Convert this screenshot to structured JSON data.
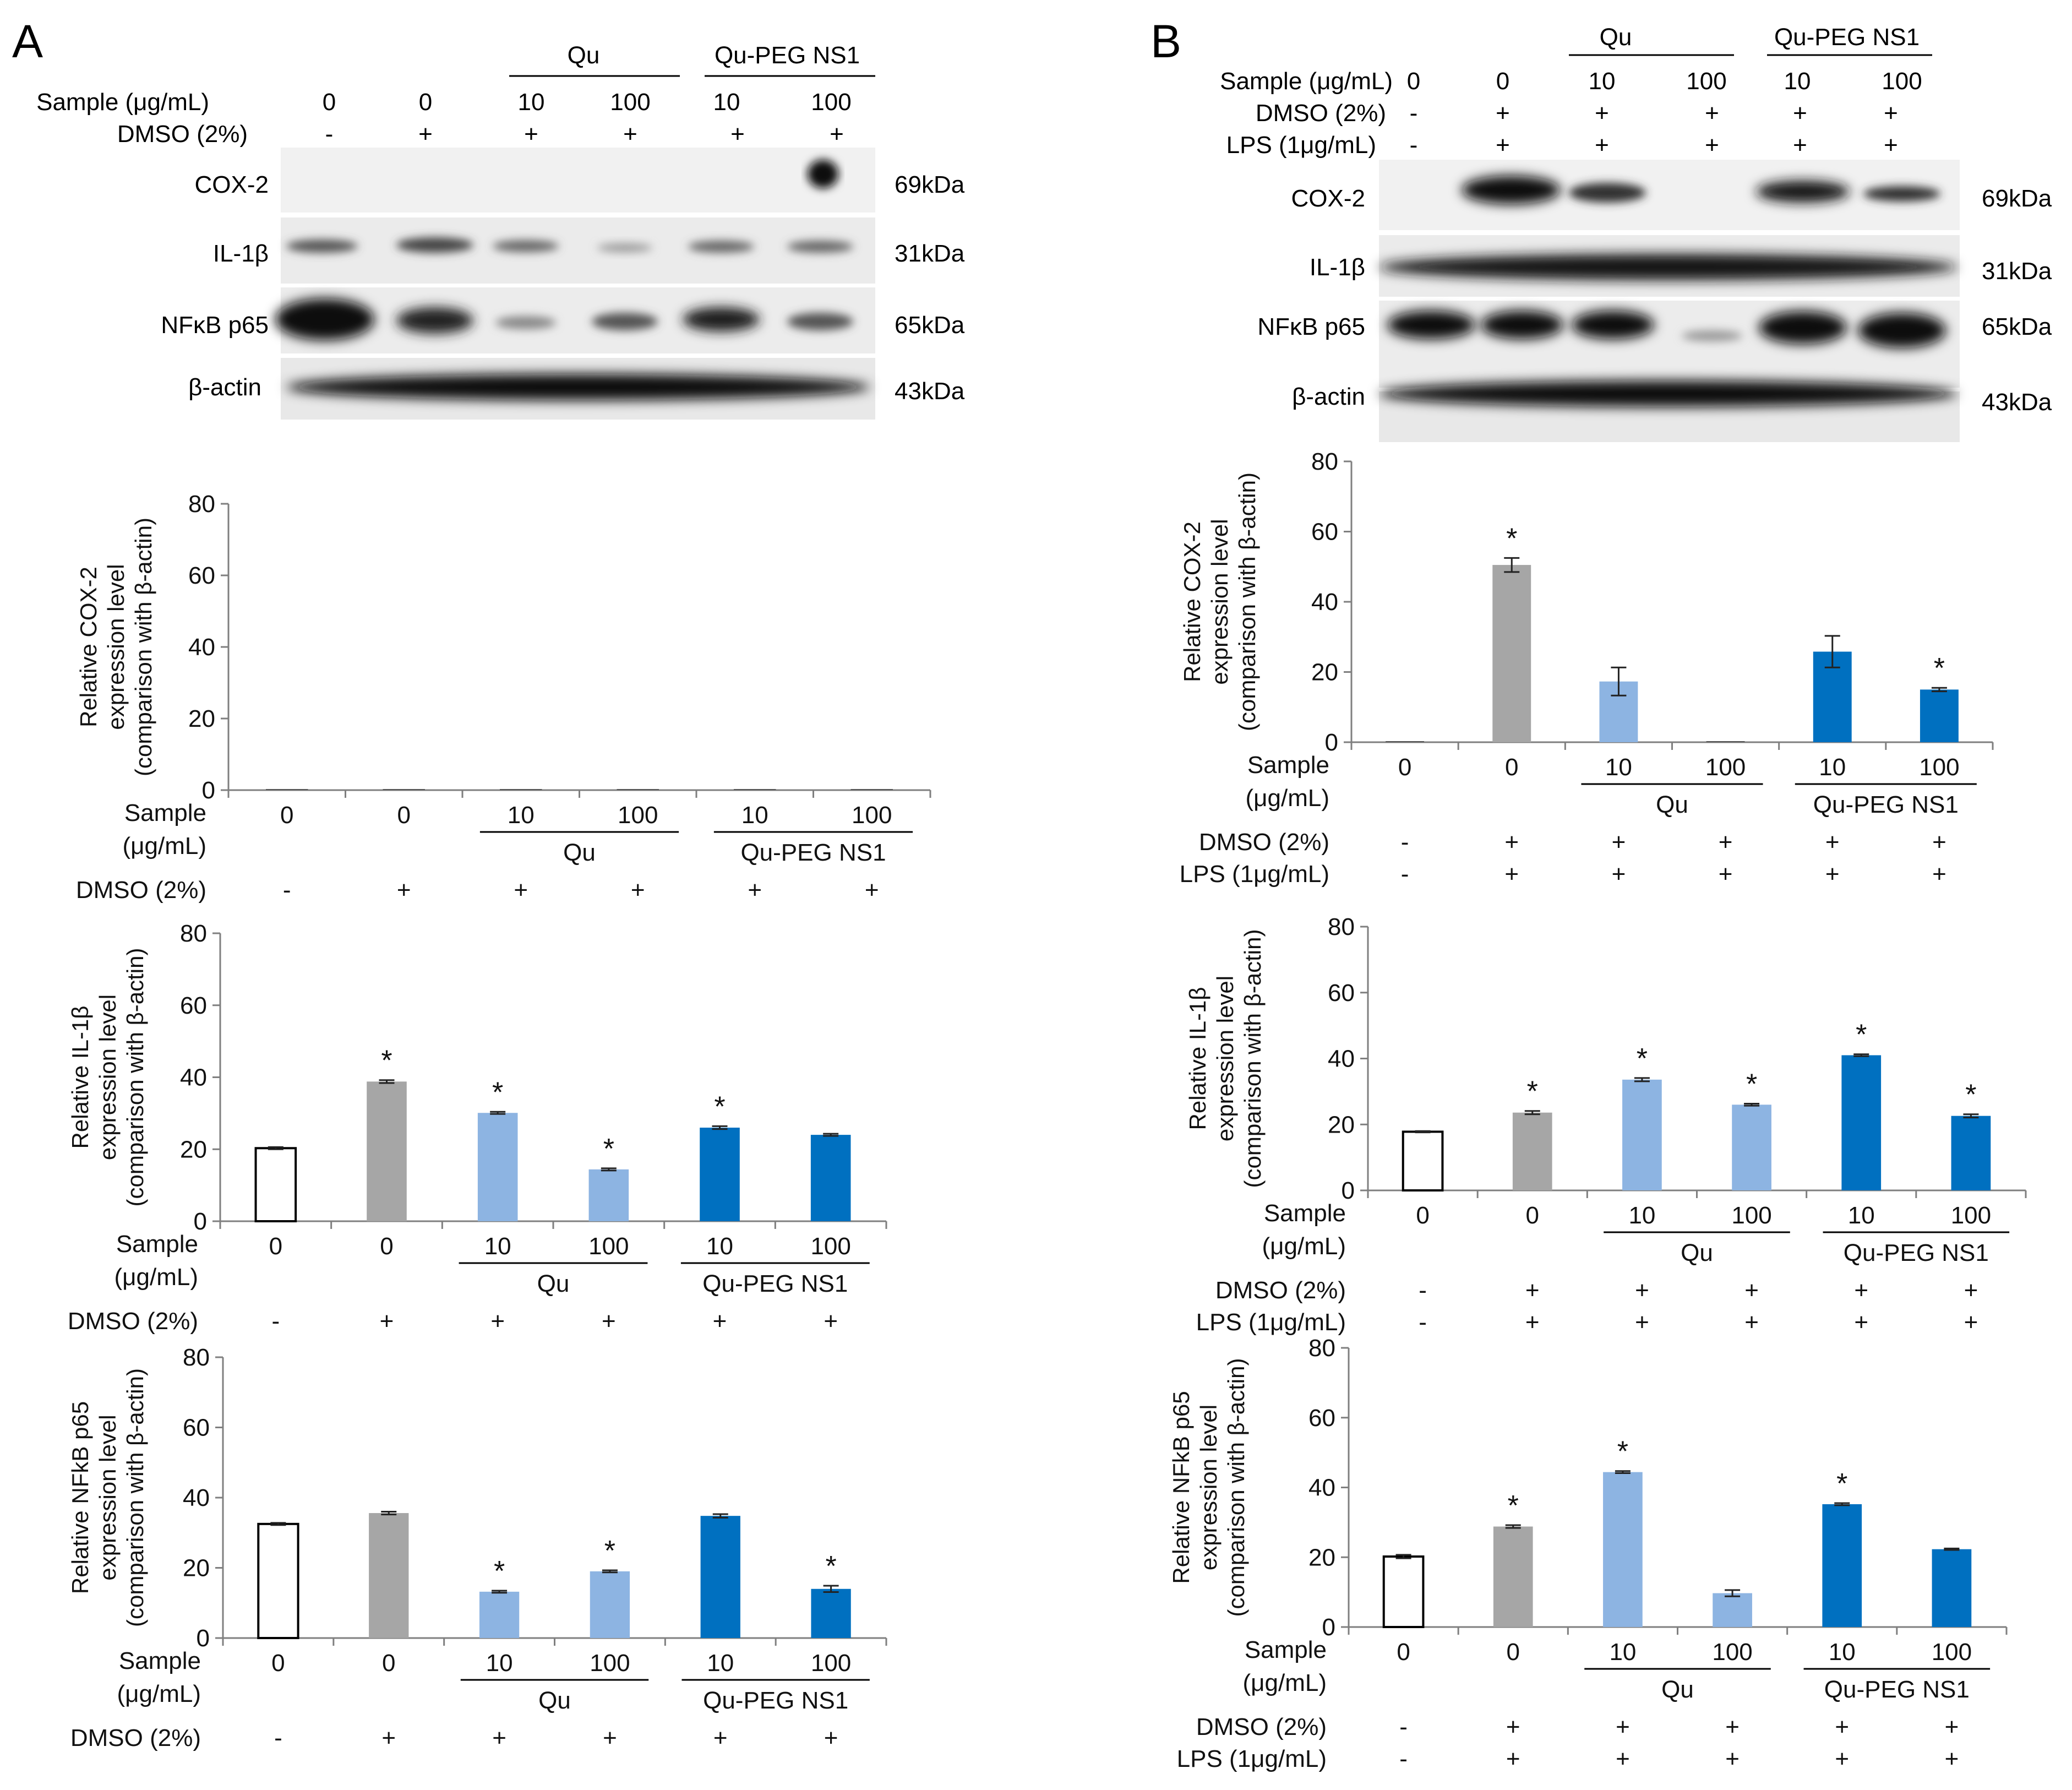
{
  "panels": [
    {
      "letter": "A",
      "header": {
        "group_labels": [
          "Qu",
          "Qu-PEG NS1"
        ],
        "rows": [
          {
            "label": "Sample (μg/mL)",
            "values": [
              "0",
              "0",
              "10",
              "100",
              "10",
              "100"
            ]
          },
          {
            "label": "DMSO (2%)",
            "values": [
              "-",
              "+",
              "+",
              "+",
              "+",
              "+"
            ]
          }
        ]
      },
      "blots": [
        {
          "label": "COX-2",
          "kda": "69kDa"
        },
        {
          "label": "IL-1β",
          "kda": "31kDa"
        },
        {
          "label": "NFκB p65",
          "kda": "65kDa"
        },
        {
          "label": "β-actin",
          "kda": "43kDa"
        }
      ]
    },
    {
      "letter": "B",
      "header": {
        "group_labels": [
          "Qu",
          "Qu-PEG NS1"
        ],
        "rows": [
          {
            "label": "Sample (μg/mL)",
            "values": [
              "0",
              "0",
              "10",
              "100",
              "10",
              "100"
            ]
          },
          {
            "label": "DMSO (2%)",
            "values": [
              "-",
              "+",
              "+",
              "+",
              "+",
              "+"
            ]
          },
          {
            "label": "LPS  (1μg/mL)",
            "values": [
              "-",
              "+",
              "+",
              "+",
              "+",
              "+"
            ]
          }
        ]
      },
      "blots": [
        {
          "label": "COX-2",
          "kda": "69kDa"
        },
        {
          "label": "IL-1β",
          "kda": "31kDa"
        },
        {
          "label": "NFκB p65",
          "kda": "65kDa"
        },
        {
          "label": "β-actin",
          "kda": "43kDa"
        }
      ]
    }
  ],
  "bar_colors": [
    "#ffffff",
    "#a6a6a6",
    "#8db4e2",
    "#8db4e2",
    "#0070c0",
    "#0070c0"
  ],
  "chart_data": [
    {
      "panel": "A",
      "type": "bar",
      "ylabel": [
        "Relative COX-2",
        "expression level",
        "(comparison with β-actin)"
      ],
      "ylim": [
        0,
        80
      ],
      "yticks": [
        0,
        20,
        40,
        60,
        80
      ],
      "categories": [
        "0",
        "0",
        "10",
        "100",
        "10",
        "100"
      ],
      "values": [
        0,
        0,
        0,
        0,
        0,
        0
      ],
      "errors": [
        0,
        0,
        0,
        0,
        0,
        0
      ],
      "significant": [
        false,
        false,
        false,
        false,
        false,
        false
      ],
      "group_labels": [
        "Qu",
        "Qu-PEG NS1"
      ],
      "row_labels": [
        "Sample",
        "(μg/mL)",
        "DMSO (2%)"
      ],
      "dmso": [
        "-",
        "+",
        "+",
        "+",
        "+",
        "+"
      ]
    },
    {
      "panel": "A",
      "type": "bar",
      "ylabel": [
        "Relative IL-1β",
        "expression level",
        "(comparison with β-actin)"
      ],
      "ylim": [
        0,
        80
      ],
      "yticks": [
        0,
        20,
        40,
        60,
        80
      ],
      "categories": [
        "0",
        "0",
        "10",
        "100",
        "10",
        "100"
      ],
      "values": [
        20.3,
        38.8,
        30.1,
        14.4,
        26.0,
        24.0
      ],
      "errors": [
        0.3,
        0.4,
        0.3,
        0.3,
        0.4,
        0.3
      ],
      "significant": [
        false,
        true,
        true,
        true,
        true,
        false
      ],
      "group_labels": [
        "Qu",
        "Qu-PEG NS1"
      ],
      "row_labels": [
        "Sample",
        "(μg/mL)",
        "DMSO (2%)"
      ],
      "dmso": [
        "-",
        "+",
        "+",
        "+",
        "+",
        "+"
      ]
    },
    {
      "panel": "A",
      "type": "bar",
      "ylabel": [
        "Relative NFkB p65",
        "expression level",
        "(comparison with β-actin)"
      ],
      "ylim": [
        0,
        80
      ],
      "yticks": [
        0,
        20,
        40,
        60,
        80
      ],
      "categories": [
        "0",
        "0",
        "10",
        "100",
        "10",
        "100"
      ],
      "values": [
        32.5,
        35.6,
        13.2,
        19.0,
        34.8,
        14.0
      ],
      "errors": [
        0.3,
        0.4,
        0.3,
        0.3,
        0.5,
        0.9
      ],
      "significant": [
        false,
        false,
        true,
        true,
        false,
        true
      ],
      "group_labels": [
        "Qu",
        "Qu-PEG NS1"
      ],
      "row_labels": [
        "Sample",
        "(μg/mL)",
        "DMSO (2%)"
      ],
      "dmso": [
        "-",
        "+",
        "+",
        "+",
        "+",
        "+"
      ]
    },
    {
      "panel": "B",
      "type": "bar",
      "ylabel": [
        "Relative COX-2",
        "expression level",
        "(comparison with β-actin)"
      ],
      "ylim": [
        0,
        80
      ],
      "yticks": [
        0,
        20,
        40,
        60,
        80
      ],
      "categories": [
        "0",
        "0",
        "10",
        "100",
        "10",
        "100"
      ],
      "values": [
        0,
        50.5,
        17.3,
        0,
        25.8,
        15.0
      ],
      "errors": [
        0,
        2.0,
        4.0,
        0,
        4.5,
        0.5
      ],
      "significant": [
        false,
        true,
        false,
        false,
        false,
        true
      ],
      "group_labels": [
        "Qu",
        "Qu-PEG NS1"
      ],
      "row_labels": [
        "Sample",
        "(μg/mL)",
        "DMSO (2%)",
        "LPS  (1μg/mL)"
      ],
      "dmso": [
        "-",
        "+",
        "+",
        "+",
        "+",
        "+"
      ],
      "lps": [
        "-",
        "+",
        "+",
        "+",
        "+",
        "+"
      ]
    },
    {
      "panel": "B",
      "type": "bar",
      "ylabel": [
        "Relative IL-1β",
        "expression level",
        "(comparison with β-actin)"
      ],
      "ylim": [
        0,
        80
      ],
      "yticks": [
        0,
        20,
        40,
        60,
        80
      ],
      "categories": [
        "0",
        "0",
        "10",
        "100",
        "10",
        "100"
      ],
      "values": [
        17.8,
        23.6,
        33.6,
        26.0,
        41.0,
        22.6
      ],
      "errors": [
        0.2,
        0.5,
        0.5,
        0.3,
        0.3,
        0.5
      ],
      "significant": [
        false,
        true,
        true,
        true,
        true,
        true
      ],
      "group_labels": [
        "Qu",
        "Qu-PEG NS1"
      ],
      "row_labels": [
        "Sample",
        "(μg/mL)",
        "DMSO (2%)",
        "LPS  (1μg/mL)"
      ],
      "dmso": [
        "-",
        "+",
        "+",
        "+",
        "+",
        "+"
      ],
      "lps": [
        "-",
        "+",
        "+",
        "+",
        "+",
        "+"
      ]
    },
    {
      "panel": "B",
      "type": "bar",
      "ylabel": [
        "Relative NFkB p65",
        "expression level",
        "(comparison with β-actin)"
      ],
      "ylim": [
        0,
        80
      ],
      "yticks": [
        0,
        20,
        40,
        60,
        80
      ],
      "categories": [
        "0",
        "0",
        "10",
        "100",
        "10",
        "100"
      ],
      "values": [
        20.2,
        28.8,
        44.4,
        9.7,
        35.2,
        22.3
      ],
      "errors": [
        0.5,
        0.4,
        0.3,
        0.9,
        0.3,
        0.2
      ],
      "significant": [
        false,
        true,
        true,
        false,
        true,
        false
      ],
      "group_labels": [
        "Qu",
        "Qu-PEG NS1"
      ],
      "row_labels": [
        "Sample",
        "(μg/mL)",
        "DMSO (2%)",
        "LPS  (1μg/mL)"
      ],
      "dmso": [
        "-",
        "+",
        "+",
        "+",
        "+",
        "+"
      ],
      "lps": [
        "-",
        "+",
        "+",
        "+",
        "+",
        "+"
      ]
    }
  ]
}
